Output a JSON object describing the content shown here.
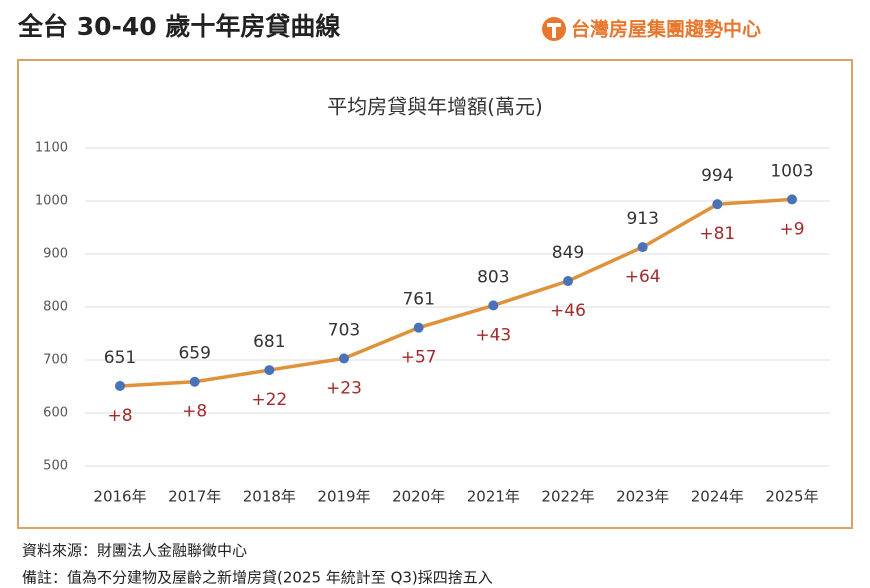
{
  "header": {
    "title": "全台 30-40 歲十年房貸曲線",
    "logo": "台灣房屋集團趨勢中心"
  },
  "chart_data": {
    "type": "line",
    "title": "平均房貸與年增額(萬元)",
    "categories": [
      "2016年",
      "2017年",
      "2018年",
      "2019年",
      "2020年",
      "2021年",
      "2022年",
      "2023年",
      "2024年",
      "2025年"
    ],
    "series": [
      {
        "color": "#e0923a",
        "marker_color": "#4a72b8",
        "values": [
          651,
          659,
          681,
          703,
          761,
          803,
          849,
          913,
          994,
          1003
        ]
      }
    ],
    "change_labels": [
      "+8",
      "+8",
      "+22",
      "+23",
      "+57",
      "+43",
      "+46",
      "+64",
      "+81",
      "+9"
    ],
    "ylim": [
      500,
      1100
    ],
    "yticks": [
      500,
      600,
      700,
      800,
      900,
      1000,
      1100
    ],
    "grid": true
  },
  "footer": {
    "source": "資料來源：財團法人金融聯徵中心",
    "note": "備註：值為不分建物及屋齡之新增房貸(2025 年統計至 Q3)採四捨五入"
  }
}
